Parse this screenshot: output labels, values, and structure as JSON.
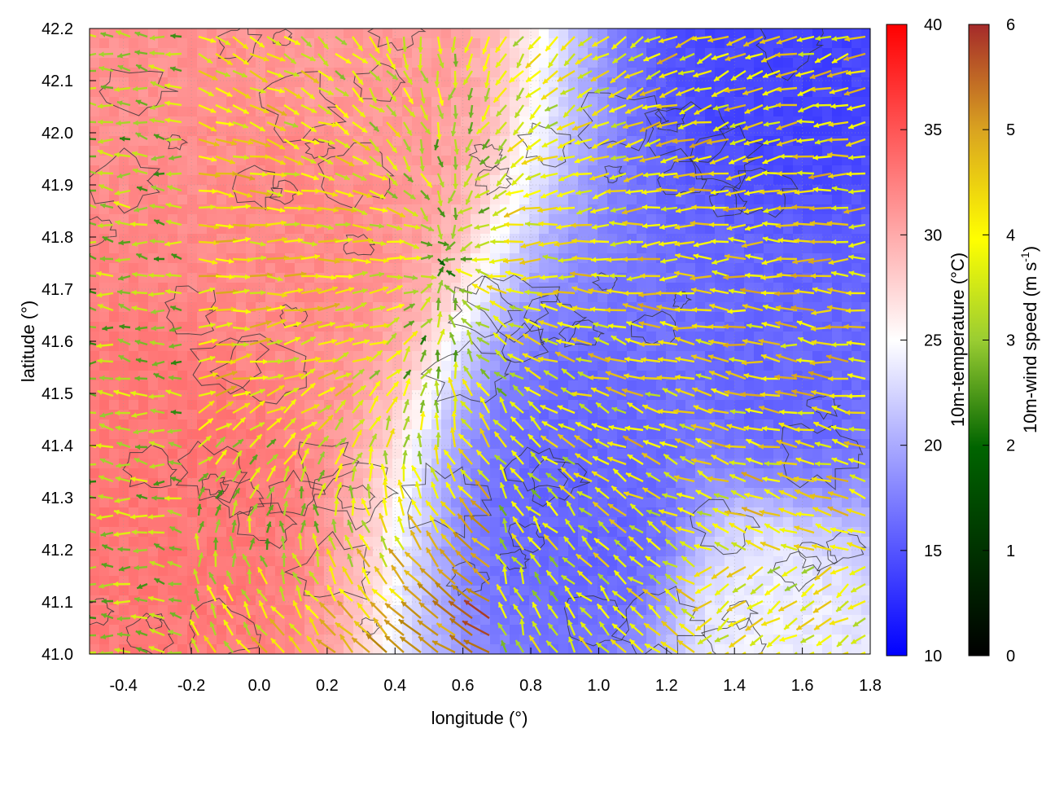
{
  "chart_data": {
    "type": "heatmap",
    "xlabel": "longitude (°)",
    "ylabel": "latitude (°)",
    "xlim": [
      -0.5,
      1.8
    ],
    "ylim": [
      41.0,
      42.2
    ],
    "x_ticks": [
      "-0.4",
      "-0.2",
      "0.0",
      "0.2",
      "0.4",
      "0.6",
      "0.8",
      "1.0",
      "1.2",
      "1.4",
      "1.6",
      "1.8"
    ],
    "x_tick_values": [
      -0.4,
      -0.2,
      0.0,
      0.2,
      0.4,
      0.6,
      0.8,
      1.0,
      1.2,
      1.4,
      1.6,
      1.8
    ],
    "y_ticks": [
      "41.0",
      "41.1",
      "41.2",
      "41.3",
      "41.4",
      "41.5",
      "41.6",
      "41.7",
      "41.8",
      "41.9",
      "42.0",
      "42.1",
      "42.2"
    ],
    "y_tick_values": [
      41.0,
      41.1,
      41.2,
      41.3,
      41.4,
      41.5,
      41.6,
      41.7,
      41.8,
      41.9,
      42.0,
      42.1,
      42.2
    ],
    "grid": true,
    "temperature_colorbar": {
      "label": "10m-temperature (°C)",
      "range": [
        10,
        40
      ],
      "ticks": [
        "10",
        "15",
        "20",
        "25",
        "30",
        "35",
        "40"
      ],
      "tick_values": [
        10,
        15,
        20,
        25,
        30,
        35,
        40
      ],
      "colors": [
        "#0000ff",
        "#ffffff",
        "#ff0000"
      ]
    },
    "wind_colorbar": {
      "label": "10m-wind speed (m s",
      "label_sup": "-1",
      "label_end": ")",
      "range": [
        0,
        6
      ],
      "ticks": [
        "0",
        "1",
        "2",
        "3",
        "4",
        "5",
        "6"
      ],
      "tick_values": [
        0,
        1,
        2,
        3,
        4,
        5,
        6
      ],
      "colors": [
        "#000000",
        "#006400",
        "#9acd32",
        "#ffff00",
        "#daa520",
        "#b8860b",
        "#a52a2a"
      ]
    },
    "temperature_field_centers": [
      {
        "lon": -0.25,
        "lat": 41.3,
        "temp": 33
      },
      {
        "lon": 0.1,
        "lat": 41.9,
        "temp": 32
      },
      {
        "lon": 0.2,
        "lat": 42.1,
        "temp": 31
      },
      {
        "lon": 1.0,
        "lat": 41.3,
        "temp": 16
      },
      {
        "lon": 1.55,
        "lat": 41.55,
        "temp": 16
      },
      {
        "lon": 1.6,
        "lat": 42.15,
        "temp": 14
      },
      {
        "lon": 1.5,
        "lat": 41.05,
        "temp": 24
      }
    ],
    "wind_vectors_note": ""
  }
}
